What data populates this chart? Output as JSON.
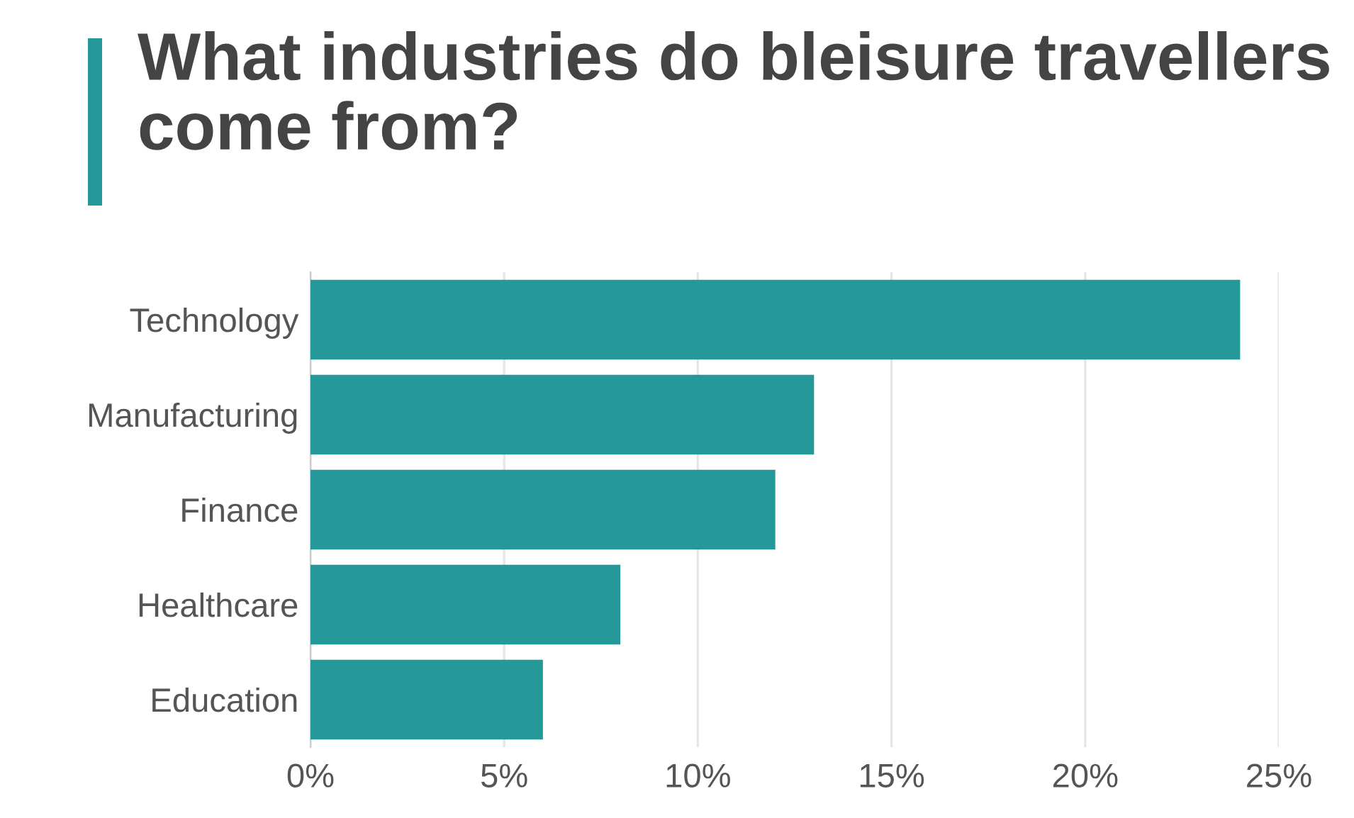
{
  "chart_data": {
    "type": "bar",
    "orientation": "horizontal",
    "title": "What industries do bleisure travellers come from?",
    "categories": [
      "Technology",
      "Manufacturing",
      "Finance",
      "Healthcare",
      "Education"
    ],
    "values": [
      24,
      13,
      12,
      8,
      6
    ],
    "color": "#25989a",
    "xlim": [
      0,
      25
    ],
    "xticks": [
      {
        "value": 0,
        "label": "0%"
      },
      {
        "value": 5,
        "label": "5%"
      },
      {
        "value": 10,
        "label": "10%"
      },
      {
        "value": 15,
        "label": "15%"
      },
      {
        "value": 20,
        "label": "20%"
      },
      {
        "value": 25,
        "label": "25%"
      }
    ],
    "grid": "x"
  }
}
